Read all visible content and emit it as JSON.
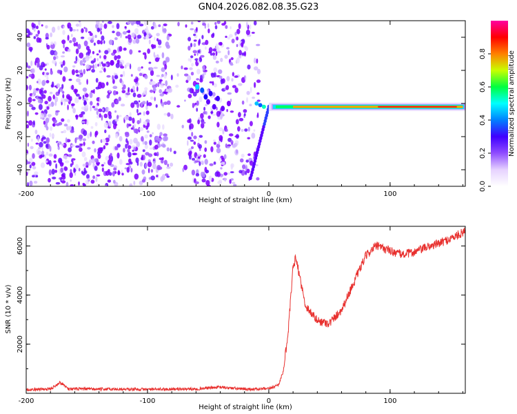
{
  "title": "GN04.2026.082.08.35.G23",
  "chart_data": [
    {
      "type": "heatmap",
      "xlabel": "Height of straight line (km)",
      "ylabel": "Frequency (Hz)",
      "xlim": [
        -200,
        162
      ],
      "ylim": [
        -50,
        50
      ],
      "xticks": [
        -200,
        -100,
        0,
        100
      ],
      "yticks": [
        -40,
        -20,
        0,
        20,
        40
      ],
      "noise_region_x": [
        -200,
        -8
      ],
      "signal_line": {
        "frequency_hz": -2,
        "x_start": 0,
        "x_end": 162,
        "peak_amplitude": 0.98
      },
      "colorbar": {
        "label": "Normalized spectral amplitude",
        "range": [
          0,
          1
        ],
        "ticks": [
          0.0,
          0.2,
          0.4,
          0.6,
          0.8
        ],
        "colors": [
          "#ffffff",
          "#e6d2ff",
          "#8f4dff",
          "#4000ff",
          "#0080ff",
          "#00ffff",
          "#00ff40",
          "#c8ff00",
          "#ff8000",
          "#ff0000",
          "#ff00a0"
        ]
      }
    },
    {
      "type": "line",
      "xlabel": "Height of straight line (km)",
      "ylabel": "SNR (10 * v/v)",
      "xlim": [
        -200,
        162
      ],
      "ylim": [
        0,
        6800
      ],
      "xticks": [
        -200,
        -100,
        0,
        100
      ],
      "yticks": [
        2000,
        4000,
        6000
      ],
      "color": "#e8302e",
      "series": [
        {
          "x": [
            -200,
            -180,
            -172,
            -165,
            -140,
            -100,
            -60,
            -40,
            -20,
            0,
            8,
            12,
            16,
            20,
            22,
            25,
            30,
            40,
            50,
            60,
            70,
            80,
            88,
            95,
            100,
            110,
            120,
            130,
            140,
            150,
            162
          ],
          "values": [
            150,
            170,
            450,
            180,
            170,
            160,
            180,
            250,
            170,
            180,
            350,
            900,
            2500,
            5100,
            5500,
            4900,
            3600,
            2950,
            2850,
            3400,
            4500,
            5600,
            6000,
            5900,
            5800,
            5650,
            5750,
            5950,
            6100,
            6300,
            6600
          ]
        }
      ]
    }
  ]
}
